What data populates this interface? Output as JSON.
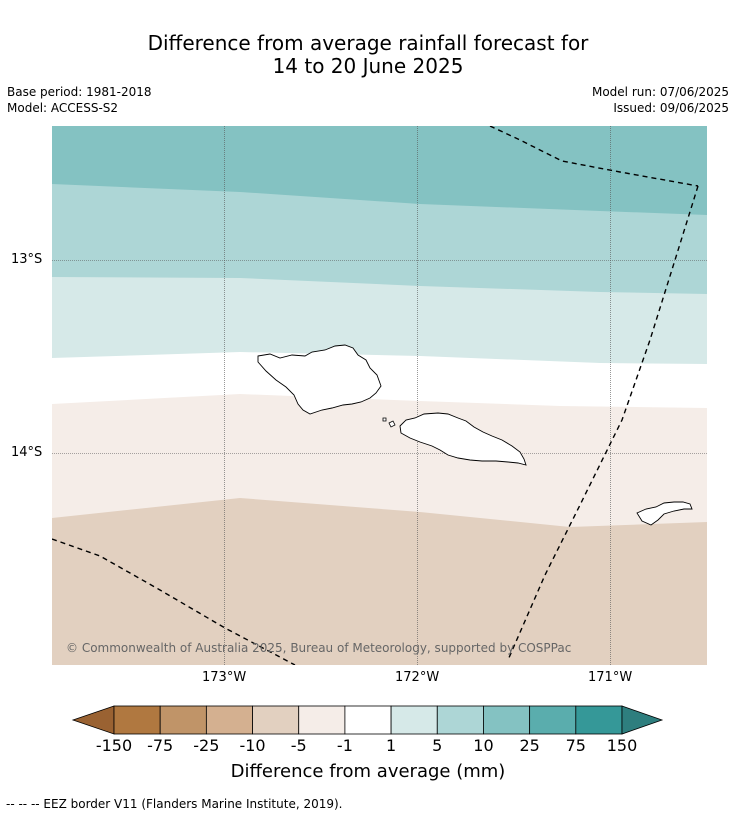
{
  "header": {
    "title_line1": "Difference from average rainfall forecast for",
    "title_line2": "14 to 20 June 2025",
    "base_period": "Base period: 1981-2018",
    "model": "Model: ACCESS-S2",
    "model_run": "Model run: 07/06/2025",
    "issued": "Issued: 09/06/2025"
  },
  "map": {
    "lat_labels": [
      "13°S",
      "14°S"
    ],
    "lon_labels": [
      "173°W",
      "172°W",
      "171°W"
    ],
    "copyright": "© Commonwealth of Australia 2025, Bureau of Meteorology, supported by COSPPac",
    "bands": [
      {
        "category": "10 to 25",
        "color": "#84c2c2"
      },
      {
        "category": "5 to 10",
        "color": "#add6d6"
      },
      {
        "category": "1 to 5",
        "color": "#d6e9e8"
      },
      {
        "category": "-1 to 1",
        "color": "#ffffff"
      },
      {
        "category": "-5 to -1",
        "color": "#f5ede8"
      },
      {
        "category": "-10 to -5",
        "color": "#e2d0c0"
      }
    ]
  },
  "colorbar": {
    "title": "Difference from average (mm)",
    "labels": [
      "-150",
      "-75",
      "-25",
      "-10",
      "-5",
      "-1",
      "1",
      "5",
      "10",
      "25",
      "75",
      "150"
    ],
    "colors": [
      "#b07840",
      "#c09468",
      "#d4b090",
      "#e2d0c0",
      "#f5ede8",
      "#ffffff",
      "#d6e9e8",
      "#add6d6",
      "#84c2c2",
      "#5aadad",
      "#359898"
    ],
    "extend_low_color": "#9a6232",
    "extend_high_color": "#2e7e7e"
  },
  "footnote": "-- -- -- EEZ border V11 (Flanders Marine Institute, 2019)."
}
